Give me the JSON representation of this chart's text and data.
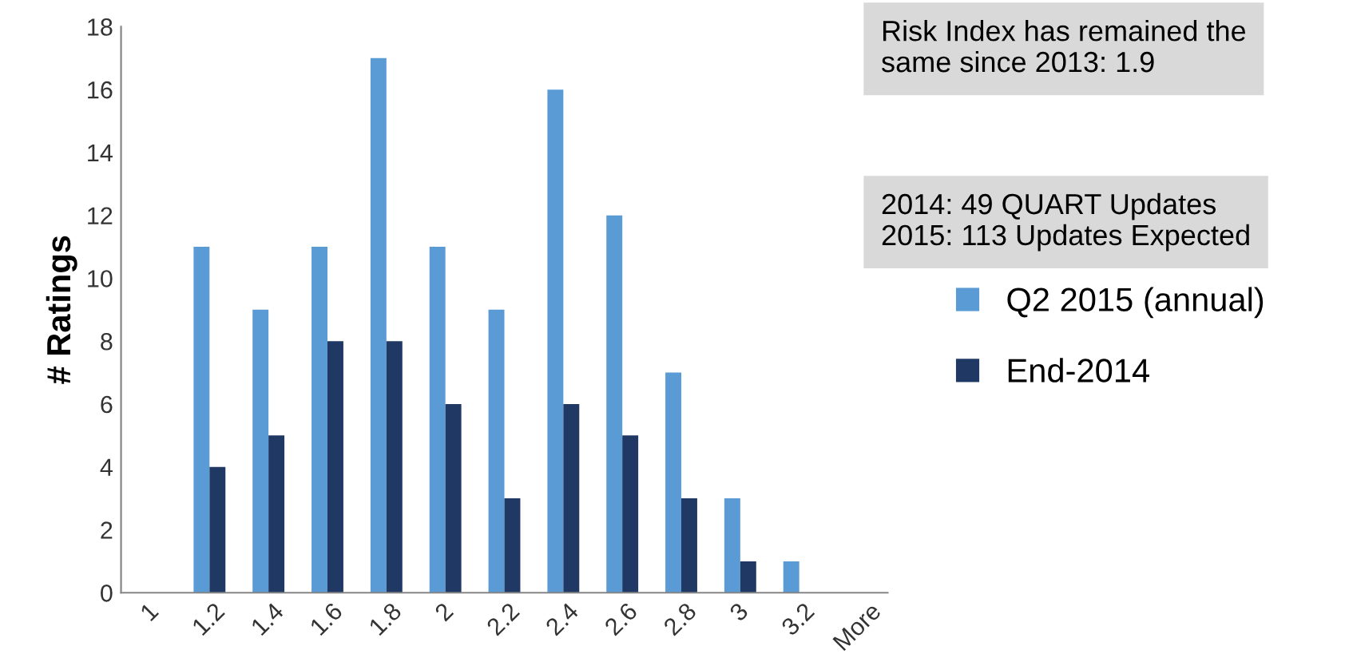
{
  "chart_data": {
    "type": "bar",
    "ylabel": "# Ratings",
    "categories": [
      "1",
      "1.2",
      "1.4",
      "1.6",
      "1.8",
      "2",
      "2.2",
      "2.4",
      "2.6",
      "2.8",
      "3",
      "3.2",
      "More"
    ],
    "series": [
      {
        "name": "Q2 2015 (annual)",
        "color": "#5b9bd5",
        "values": [
          0,
          11,
          9,
          11,
          17,
          11,
          9,
          16,
          12,
          7,
          3,
          1,
          0
        ]
      },
      {
        "name": "End-2014",
        "color": "#1f3864",
        "values": [
          0,
          4,
          5,
          8,
          8,
          6,
          3,
          6,
          5,
          3,
          1,
          0,
          0
        ]
      }
    ],
    "ylim": [
      0,
      18
    ],
    "yticks": [
      0,
      2,
      4,
      6,
      8,
      10,
      12,
      14,
      16,
      18
    ],
    "grid": false,
    "legend": "right",
    "annotations": [
      "Risk Index has remained the\nsame since 2013: 1.9",
      "2014: 49 QUART Updates\n2015: 113 Updates Expected"
    ]
  }
}
